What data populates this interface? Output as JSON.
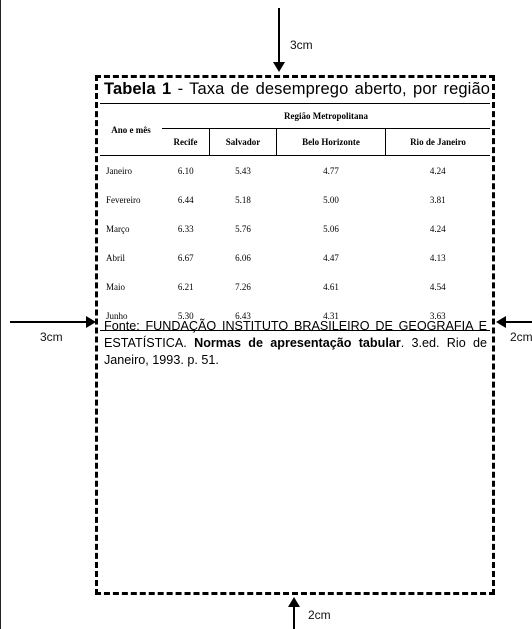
{
  "margins": {
    "top": "3cm",
    "left": "3cm",
    "right": "2cm",
    "bottom": "2cm"
  },
  "title": {
    "label": "Tabela 1",
    "text": " - Taxa de desemprego aberto, por região"
  },
  "table": {
    "row_header": "Ano e mês",
    "group_header": "Região Metropolitana",
    "columns": [
      "Recife",
      "Salvador",
      "Belo Horizonte",
      "Rio de Janeiro"
    ],
    "rows": [
      {
        "month": "Janeiro",
        "values": [
          "6.10",
          "5.43",
          "4.77",
          "4.24"
        ]
      },
      {
        "month": "Fevereiro",
        "values": [
          "6.44",
          "5.18",
          "5.00",
          "3.81"
        ]
      },
      {
        "month": "Março",
        "values": [
          "6.33",
          "5.76",
          "5.06",
          "4.24"
        ]
      },
      {
        "month": "Abril",
        "values": [
          "6.67",
          "6.06",
          "4.47",
          "4.13"
        ]
      },
      {
        "month": "Maio",
        "values": [
          "6.21",
          "7.26",
          "4.61",
          "4.54"
        ]
      },
      {
        "month": "Junho",
        "values": [
          "5.30",
          "6.43",
          "4.31",
          "3.63"
        ]
      }
    ]
  },
  "source": {
    "prefix": "Fonte: FUNDAÇÃO INSTITUTO BRASILEIRO DE GEOGRAFIA E ESTATÍSTICA. ",
    "bold": "Normas de apresentação tabular",
    "suffix": ". 3.ed. Rio de Janeiro, 1993. p. 51."
  }
}
